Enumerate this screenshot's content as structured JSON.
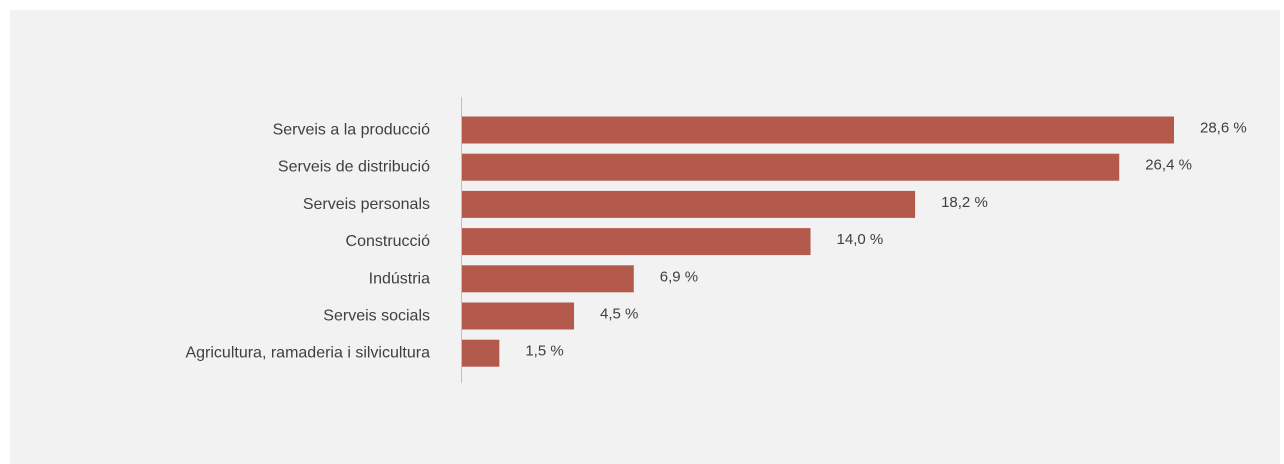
{
  "chart_data": {
    "type": "bar",
    "orientation": "horizontal",
    "categories": [
      "Serveis a la producció",
      "Serveis de distribució",
      "Serveis personals",
      "Construcció",
      "Indústria",
      "Serveis socials",
      "Agricultura, ramaderia i silvicultura"
    ],
    "values": [
      28.6,
      26.4,
      18.2,
      14.0,
      6.9,
      4.5,
      1.5
    ],
    "value_labels": [
      "28,6 %",
      "26,4 %",
      "18,2 %",
      "14,0 %",
      "6,9 %",
      "4,5 %",
      "1,5 %"
    ],
    "xlim": [
      0,
      28.6
    ],
    "title": "",
    "xlabel": "",
    "ylabel": "",
    "grid": false,
    "legend": "none",
    "bar_color": "#b35a4d",
    "axis_color": "#bfbfbf",
    "background_color": "#f2f2f2"
  }
}
